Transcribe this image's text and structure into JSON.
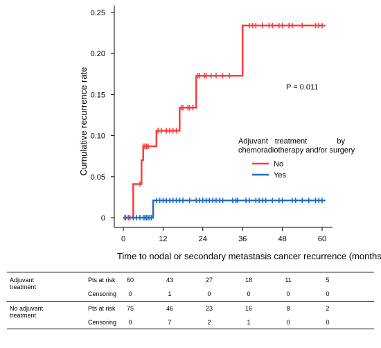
{
  "chart_data": {
    "type": "step-line",
    "title": "",
    "xlabel": "Time to nodal or secondary metastasis cancer recurrence (months)",
    "ylabel": "Cumulative recurrence rate",
    "xlim": [
      0,
      60
    ],
    "ylim": [
      0,
      0.25
    ],
    "x_ticks": [
      "0",
      "12",
      "24",
      "36",
      "48",
      "60"
    ],
    "y_ticks": [
      "0",
      "0.05",
      "0.10",
      "0.15",
      "0.20",
      "0.25"
    ],
    "grid": false,
    "annotation": "P = 0.011",
    "legend": {
      "title": "Adjuvant treatment by chemoradiotherapy and/or surgery",
      "title_line1": [
        "Adjuvant",
        "treatment",
        "by"
      ],
      "title_line2": "chemoradiotherapy and/or surgery",
      "placement": "right",
      "entries": [
        "No",
        "Yes"
      ]
    },
    "series": [
      {
        "name": "No",
        "color": "#ff3b3b",
        "steps": [
          [
            0,
            0
          ],
          [
            3,
            0
          ],
          [
            3,
            0.041
          ],
          [
            5.5,
            0.041
          ],
          [
            5.5,
            0.07
          ],
          [
            6,
            0.07
          ],
          [
            6,
            0.087
          ],
          [
            7.5,
            0.087
          ],
          [
            7.5,
            0.087
          ],
          [
            10,
            0.087
          ],
          [
            10,
            0.106
          ],
          [
            17,
            0.106
          ],
          [
            17,
            0.134
          ],
          [
            22,
            0.134
          ],
          [
            22,
            0.173
          ],
          [
            36,
            0.173
          ],
          [
            36,
            0.234
          ],
          [
            61,
            0.234
          ]
        ],
        "censors": [
          0.7,
          1.5,
          5,
          6,
          6.5,
          7,
          7.5,
          10.5,
          11.5,
          13,
          14,
          15,
          16,
          17.5,
          18,
          19.5,
          20,
          21,
          22.5,
          23,
          24.5,
          25,
          26.5,
          28,
          30,
          32,
          38,
          39,
          40,
          42,
          44,
          45,
          47,
          48,
          50,
          51,
          54,
          58,
          59,
          60
        ]
      },
      {
        "name": "Yes",
        "color": "#1f6fc5",
        "steps": [
          [
            0,
            0
          ],
          [
            9,
            0
          ],
          [
            9,
            0.021
          ],
          [
            61,
            0.021
          ]
        ],
        "censors": [
          0.5,
          2,
          3,
          4,
          5,
          6,
          6.5,
          7,
          7.5,
          8,
          8.5,
          10,
          11,
          12,
          13,
          14,
          15,
          16,
          17,
          18,
          20,
          22,
          23,
          24,
          25,
          26,
          27,
          28,
          29,
          30,
          33,
          34,
          34.5,
          37,
          38,
          40,
          41,
          42,
          43,
          45,
          47,
          48,
          51,
          52,
          54,
          56,
          58,
          59,
          60
        ]
      }
    ]
  },
  "risk_table": {
    "groups": [
      {
        "name": "Adjuvant treatment",
        "name_lines": [
          "Adjuvant",
          "treatment"
        ],
        "rows": [
          {
            "label": "Pts at risk",
            "values": [
              "60",
              "43",
              "27",
              "18",
              "11",
              "5"
            ]
          },
          {
            "label": "Censoring",
            "values": [
              "0",
              "1",
              "0",
              "0",
              "0",
              "0"
            ]
          }
        ]
      },
      {
        "name": "No adjuvant treatment",
        "name_lines": [
          "No adjuvant",
          "treatment"
        ],
        "rows": [
          {
            "label": "Pts at risk",
            "values": [
              "75",
              "46",
              "23",
              "16",
              "8",
              "2"
            ]
          },
          {
            "label": "Censoring",
            "values": [
              "0",
              "7",
              "2",
              "1",
              "0",
              "0"
            ]
          }
        ]
      }
    ]
  }
}
